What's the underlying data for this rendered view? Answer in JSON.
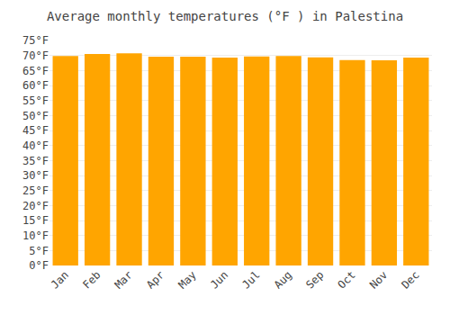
{
  "chart_data": {
    "type": "bar",
    "title": "Average monthly temperatures (°F ) in Palestina",
    "categories": [
      "Jan",
      "Feb",
      "Mar",
      "Apr",
      "May",
      "Jun",
      "Jul",
      "Aug",
      "Sep",
      "Oct",
      "Nov",
      "Dec"
    ],
    "values": [
      69.8,
      70.5,
      70.7,
      69.6,
      69.6,
      69.3,
      69.7,
      69.8,
      69.4,
      68.5,
      68.4,
      69.3
    ],
    "color": "#FFA500",
    "ylim": [
      0,
      75
    ],
    "yticks": [
      {
        "value": 0,
        "label": "0°F"
      },
      {
        "value": 5,
        "label": "5°F"
      },
      {
        "value": 10,
        "label": "10°F"
      },
      {
        "value": 15,
        "label": "15°F"
      },
      {
        "value": 20,
        "label": "20°F"
      },
      {
        "value": 25,
        "label": "25°F"
      },
      {
        "value": 30,
        "label": "30°F"
      },
      {
        "value": 35,
        "label": "35°F"
      },
      {
        "value": 40,
        "label": "40°F"
      },
      {
        "value": 45,
        "label": "45°F"
      },
      {
        "value": 50,
        "label": "50°F"
      },
      {
        "value": 55,
        "label": "55°F"
      },
      {
        "value": 60,
        "label": "60°F"
      },
      {
        "value": 65,
        "label": "65°F"
      },
      {
        "value": 70,
        "label": "70°F"
      },
      {
        "value": 75,
        "label": "75°F"
      }
    ],
    "grid": true
  }
}
